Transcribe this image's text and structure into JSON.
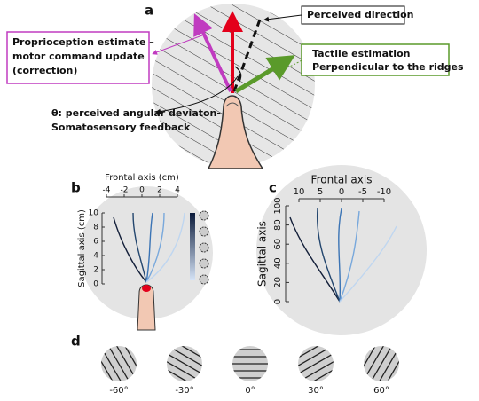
{
  "panel_a": {
    "label": "a",
    "perceived": "Perceived direction",
    "proprio": [
      "Proprioception estimate –",
      "motor command update",
      "(correction)"
    ],
    "tactile": [
      "Tactile estimation",
      "Perpendicular to the ridges"
    ],
    "theta": [
      "θ: perceived angular deviaton-",
      "Somatosensory feedback"
    ]
  },
  "panel_b": {
    "label": "b",
    "x_title": "Frontal axis (cm)",
    "y_title": "Sagittal axis (cm)",
    "xticks": [
      -4,
      -2,
      0,
      2,
      4
    ],
    "yticks": [
      10,
      8,
      6,
      4,
      2,
      0
    ]
  },
  "panel_c": {
    "label": "c",
    "x_title": "Frontal axis",
    "y_title": "Sagittal axis",
    "xticks": [
      10,
      5,
      0,
      -5,
      -10
    ],
    "yticks": [
      100,
      80,
      60,
      40,
      20,
      0
    ]
  },
  "panel_d": {
    "label": "d",
    "gratings": [
      "-60°",
      "-30°",
      "0°",
      "30°",
      "60°"
    ]
  }
}
